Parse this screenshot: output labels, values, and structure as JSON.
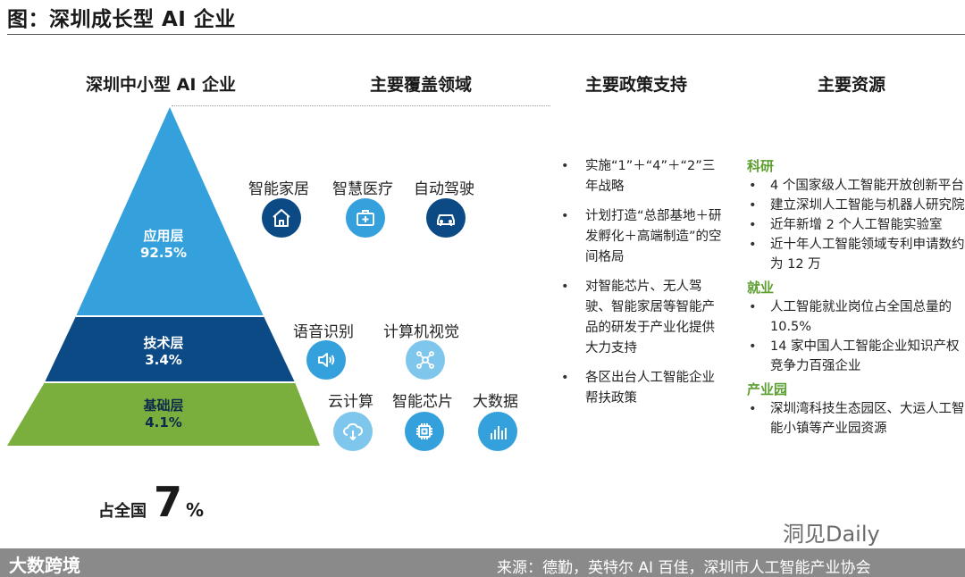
{
  "header": {
    "title": "图：深圳成长型 AI 企业"
  },
  "columns": {
    "pyramid_title": "深圳中小型 AI 企业",
    "domains_title": "主要覆盖领域",
    "policy_title": "主要政策支持",
    "resources_title": "主要资源"
  },
  "pyramid": {
    "layers": [
      {
        "name": "应用层",
        "share": "92.5%",
        "color": "#34a0dc"
      },
      {
        "name": "技术层",
        "share": "3.4%",
        "color": "#0b4a85"
      },
      {
        "name": "基础层",
        "share": "4.1%",
        "color": "#7aae3d"
      }
    ],
    "national_prefix": "占全国",
    "national_value": "7",
    "national_unit": "%"
  },
  "domains": {
    "application": [
      {
        "label": "智能家居",
        "icon": "house-icon"
      },
      {
        "label": "智慧医疗",
        "icon": "medical-kit-icon"
      },
      {
        "label": "自动驾驶",
        "icon": "car-icon"
      }
    ],
    "technology": [
      {
        "label": "语音识别",
        "icon": "speaker-icon"
      },
      {
        "label": "计算机视觉",
        "icon": "vision-network-icon"
      }
    ],
    "foundation": [
      {
        "label": "云计算",
        "icon": "cloud-download-icon"
      },
      {
        "label": "智能芯片",
        "icon": "chip-icon"
      },
      {
        "label": "大数据",
        "icon": "data-bars-icon"
      }
    ]
  },
  "policy": [
    "实施“1”＋“4”＋“2”三年战略",
    "计划打造“总部基地＋研发孵化＋高端制造”的空间格局",
    "对智能芯片、无人驾驶、智能家居等智能产品的研发于产业化提供大力支持",
    "各区出台人工智能企业帮扶政策"
  ],
  "resources": [
    {
      "category": "科研",
      "items": [
        "4 个国家级人工智能开放创新平台",
        "建立深圳人工智能与机器人研究院",
        "近年新增 2 个人工智能实验室",
        "近十年人工智能领域专利申请数约为 12 万"
      ]
    },
    {
      "category": "就业",
      "items": [
        "人工智能就业岗位占全国总量的 10.5%",
        "14 家中国人工智能企业知识产权竞争力百强企业"
      ]
    },
    {
      "category": "产业园",
      "items": [
        "深圳湾科技生态园区、大运人工智能小镇等产业园资源"
      ]
    }
  ],
  "footer": {
    "watermark": "洞见Daily",
    "logo": "大数跨境",
    "source": "来源：德勤，英特尔 AI 百佳，深圳市人工智能产业协会"
  }
}
